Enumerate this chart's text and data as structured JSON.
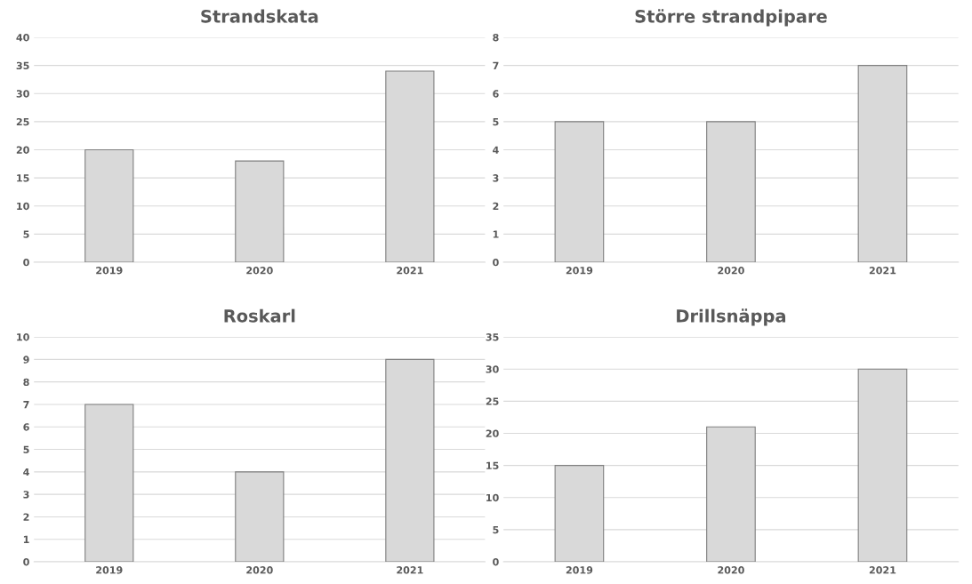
{
  "chart_data": [
    {
      "type": "bar",
      "title": "Strandskata",
      "categories": [
        "2019",
        "2020",
        "2021"
      ],
      "values": [
        20,
        18,
        34
      ],
      "color": "#d9d9d9",
      "ylim": [
        0,
        40
      ],
      "yticks": [
        0,
        5,
        10,
        15,
        20,
        25,
        30,
        35,
        40
      ],
      "grid": "y"
    },
    {
      "type": "bar",
      "title": "Större strandpipare",
      "categories": [
        "2019",
        "2020",
        "2021"
      ],
      "values": [
        5,
        5,
        7
      ],
      "color": "#d9d9d9",
      "ylim": [
        0,
        8
      ],
      "yticks": [
        0,
        1,
        2,
        3,
        4,
        5,
        6,
        7,
        8
      ],
      "grid": "y"
    },
    {
      "type": "bar",
      "title": "Roskarl",
      "categories": [
        "2019",
        "2020",
        "2021"
      ],
      "values": [
        7,
        4,
        9
      ],
      "color": "#d9d9d9",
      "ylim": [
        0,
        10
      ],
      "yticks": [
        0,
        1,
        2,
        3,
        4,
        5,
        6,
        7,
        8,
        9,
        10
      ],
      "grid": "y"
    },
    {
      "type": "bar",
      "title": "Drillsnäppa",
      "categories": [
        "2019",
        "2020",
        "2021"
      ],
      "values": [
        15,
        21,
        30
      ],
      "color": "#d9d9d9",
      "ylim": [
        0,
        35
      ],
      "yticks": [
        0,
        5,
        10,
        15,
        20,
        25,
        30,
        35
      ],
      "grid": "y"
    }
  ]
}
